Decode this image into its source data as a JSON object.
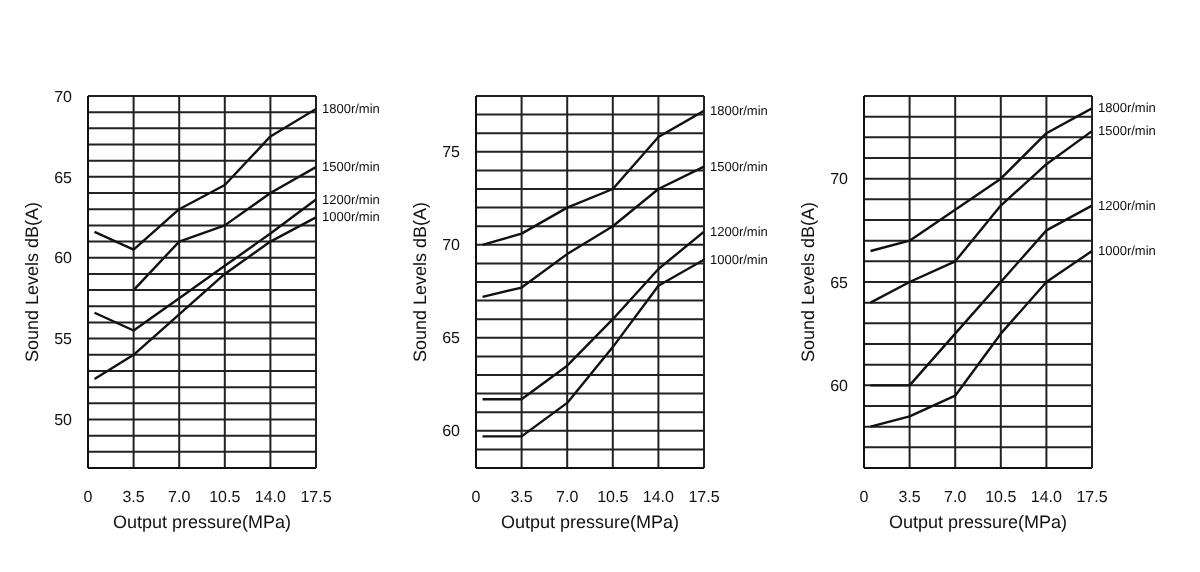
{
  "chart_data": [
    {
      "type": "line",
      "xlabel": "Output pressure(MPa)",
      "ylabel": "Sound Levels dB(A)",
      "x": [
        0.5,
        3.5,
        7,
        10.5,
        14,
        17.5
      ],
      "xlim": [
        0,
        17.5
      ],
      "xticks": [
        {
          "value": 0,
          "label": "0"
        },
        {
          "value": 3.5,
          "label": "3.5"
        },
        {
          "value": 7,
          "label": "7.0"
        },
        {
          "value": 10.5,
          "label": "10.5"
        },
        {
          "value": 14,
          "label": "14.0"
        },
        {
          "value": 17.5,
          "label": "17.5"
        }
      ],
      "ylim": [
        47,
        70
      ],
      "yticks": [
        {
          "value": 47,
          "label": null
        },
        {
          "value": 48,
          "label": null
        },
        {
          "value": 49,
          "label": null
        },
        50,
        {
          "value": 51,
          "label": null
        },
        {
          "value": 52,
          "label": null
        },
        {
          "value": 53,
          "label": null
        },
        {
          "value": 54,
          "label": null
        },
        55,
        {
          "value": 56,
          "label": null
        },
        {
          "value": 57,
          "label": null
        },
        {
          "value": 58,
          "label": null
        },
        {
          "value": 59,
          "label": null
        },
        60,
        {
          "value": 61,
          "label": null
        },
        {
          "value": 62,
          "label": null
        },
        {
          "value": 63,
          "label": null
        },
        {
          "value": 64,
          "label": null
        },
        65,
        {
          "value": 66,
          "label": null
        },
        {
          "value": 67,
          "label": null
        },
        {
          "value": 68,
          "label": null
        },
        {
          "value": 69,
          "label": null
        },
        70
      ],
      "grid": true,
      "legend": false,
      "series": [
        {
          "name": "1800r/min",
          "color": "#111111",
          "values": [
            61.6,
            60.5,
            63,
            64.5,
            67.5,
            69.2
          ]
        },
        {
          "name": "1500r/min",
          "color": "#111111",
          "values": [
            null,
            58,
            61,
            62,
            64,
            65.6
          ]
        },
        {
          "name": "1200r/min",
          "color": "#111111",
          "values": [
            56.6,
            55.5,
            57.5,
            59.5,
            61.5,
            63.6
          ]
        },
        {
          "name": "1000r/min",
          "color": "#111111",
          "values": [
            52.5,
            54,
            56.5,
            59,
            61,
            62.5
          ]
        }
      ]
    },
    {
      "type": "line",
      "xlabel": "Output pressure(MPa)",
      "ylabel": "Sound Levels dB(A)",
      "x": [
        0.5,
        3.5,
        7,
        10.5,
        14,
        17.5
      ],
      "xlim": [
        0,
        17.5
      ],
      "xticks": [
        {
          "value": 0,
          "label": "0"
        },
        {
          "value": 3.5,
          "label": "3.5"
        },
        {
          "value": 7,
          "label": "7.0"
        },
        {
          "value": 10.5,
          "label": "10.5"
        },
        {
          "value": 14,
          "label": "14.0"
        },
        {
          "value": 17.5,
          "label": "17.5"
        }
      ],
      "ylim": [
        58,
        78
      ],
      "yticks": [
        {
          "value": 58,
          "label": null
        },
        {
          "value": 59,
          "label": null
        },
        60,
        {
          "value": 61,
          "label": null
        },
        {
          "value": 62,
          "label": null
        },
        {
          "value": 63,
          "label": null
        },
        {
          "value": 64,
          "label": null
        },
        65,
        {
          "value": 66,
          "label": null
        },
        {
          "value": 67,
          "label": null
        },
        {
          "value": 68,
          "label": null
        },
        {
          "value": 69,
          "label": null
        },
        70,
        {
          "value": 71,
          "label": null
        },
        {
          "value": 72,
          "label": null
        },
        {
          "value": 73,
          "label": null
        },
        {
          "value": 74,
          "label": null
        },
        75,
        {
          "value": 76,
          "label": null
        },
        {
          "value": 77,
          "label": null
        },
        {
          "value": 78,
          "label": null
        }
      ],
      "grid": true,
      "legend": false,
      "series": [
        {
          "name": "1800r/min",
          "color": "#111111",
          "values": [
            70,
            70.6,
            72,
            73,
            75.8,
            77.2
          ]
        },
        {
          "name": "1500r/min",
          "color": "#111111",
          "values": [
            67.2,
            67.7,
            69.5,
            71,
            73,
            74.2
          ]
        },
        {
          "name": "1200r/min",
          "color": "#111111",
          "values": [
            61.7,
            61.7,
            63.5,
            66,
            68.7,
            70.7
          ]
        },
        {
          "name": "1000r/min",
          "color": "#111111",
          "values": [
            59.7,
            59.7,
            61.5,
            64.5,
            67.8,
            69.2
          ]
        }
      ]
    },
    {
      "type": "line",
      "xlabel": "Output pressure(MPa)",
      "ylabel": "Sound Levels dB(A)",
      "x": [
        0.5,
        3.5,
        7,
        10.5,
        14,
        17.5
      ],
      "xlim": [
        0,
        17.5
      ],
      "xticks": [
        {
          "value": 0,
          "label": "0"
        },
        {
          "value": 3.5,
          "label": "3.5"
        },
        {
          "value": 7,
          "label": "7.0"
        },
        {
          "value": 10.5,
          "label": "10.5"
        },
        {
          "value": 14,
          "label": "14.0"
        },
        {
          "value": 17.5,
          "label": "17.5"
        }
      ],
      "ylim": [
        56,
        74
      ],
      "yticks": [
        {
          "value": 56,
          "label": null
        },
        {
          "value": 57,
          "label": null
        },
        {
          "value": 58,
          "label": null
        },
        {
          "value": 59,
          "label": null
        },
        60,
        {
          "value": 61,
          "label": null
        },
        {
          "value": 62,
          "label": null
        },
        {
          "value": 63,
          "label": null
        },
        {
          "value": 64,
          "label": null
        },
        65,
        {
          "value": 66,
          "label": null
        },
        {
          "value": 67,
          "label": null
        },
        {
          "value": 68,
          "label": null
        },
        {
          "value": 69,
          "label": null
        },
        70,
        {
          "value": 71,
          "label": null
        },
        {
          "value": 72,
          "label": null
        },
        {
          "value": 73,
          "label": null
        },
        {
          "value": 74,
          "label": null
        }
      ],
      "grid": true,
      "legend": false,
      "series": [
        {
          "name": "1800r/min",
          "color": "#111111",
          "values": [
            66.5,
            67,
            68.5,
            70,
            72.2,
            73.4
          ]
        },
        {
          "name": "1500r/min",
          "color": "#111111",
          "values": [
            64,
            65,
            66,
            68.7,
            70.7,
            72.3
          ]
        },
        {
          "name": "1200r/min",
          "color": "#111111",
          "values": [
            60,
            60,
            62.5,
            65,
            67.5,
            68.7
          ]
        },
        {
          "name": "1000r/min",
          "color": "#111111",
          "values": [
            58,
            58.5,
            59.5,
            62.5,
            65,
            66.5
          ]
        }
      ]
    }
  ]
}
